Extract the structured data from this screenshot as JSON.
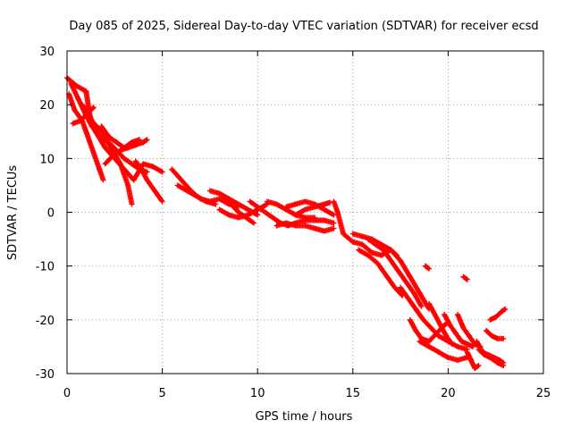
{
  "chart_data": {
    "type": "scatter",
    "title": "Day 085 of 2025, Sidereal Day-to-day VTEC variation (SDTVAR) for receiver ecsd",
    "xlabel": "GPS time / hours",
    "ylabel": "SDTVAR / TECUs",
    "xlim": [
      0,
      25
    ],
    "ylim": [
      -30,
      30
    ],
    "xticks": [
      0,
      5,
      10,
      15,
      20,
      25
    ],
    "yticks": [
      -30,
      -20,
      -10,
      0,
      10,
      20,
      30
    ],
    "grid": true,
    "marker": "+",
    "series_color": "#ff0000",
    "segments": [
      [
        [
          0.0,
          25.0
        ],
        [
          0.5,
          23.5
        ],
        [
          1.0,
          22.5
        ],
        [
          1.2,
          18.0
        ],
        [
          1.5,
          15.0
        ],
        [
          2.0,
          12.0
        ],
        [
          2.5,
          10.0
        ],
        [
          3.0,
          8.0
        ],
        [
          3.5,
          6.0
        ],
        [
          4.0,
          9.0
        ],
        [
          4.5,
          8.5
        ],
        [
          5.0,
          7.5
        ]
      ],
      [
        [
          0.1,
          22.0
        ],
        [
          0.4,
          19.0
        ],
        [
          0.8,
          17.0
        ],
        [
          1.1,
          14.0
        ],
        [
          1.4,
          11.0
        ],
        [
          1.7,
          8.0
        ],
        [
          1.9,
          6.0
        ]
      ],
      [
        [
          0.2,
          24.0
        ],
        [
          0.6,
          21.0
        ],
        [
          1.0,
          18.0
        ],
        [
          1.3,
          16.0
        ],
        [
          1.6,
          14.5
        ],
        [
          1.9,
          13.0
        ]
      ],
      [
        [
          0.8,
          20.0
        ],
        [
          1.3,
          17.0
        ],
        [
          1.8,
          15.0
        ],
        [
          2.3,
          12.0
        ],
        [
          2.8,
          9.0
        ],
        [
          3.2,
          5.0
        ],
        [
          3.4,
          1.5
        ]
      ],
      [
        [
          0.3,
          16.5
        ],
        [
          0.7,
          17.0
        ],
        [
          1.1,
          18.5
        ],
        [
          1.4,
          19.5
        ]
      ],
      [
        [
          1.8,
          16.0
        ],
        [
          2.2,
          14.0
        ],
        [
          2.6,
          13.0
        ],
        [
          3.0,
          12.0
        ],
        [
          3.4,
          13.0
        ],
        [
          3.8,
          13.5
        ]
      ],
      [
        [
          2.2,
          13.0
        ],
        [
          2.6,
          11.5
        ],
        [
          3.0,
          10.0
        ],
        [
          3.4,
          9.0
        ],
        [
          3.8,
          8.0
        ],
        [
          4.2,
          7.5
        ]
      ],
      [
        [
          2.0,
          9.0
        ],
        [
          2.4,
          10.5
        ],
        [
          2.8,
          11.5
        ],
        [
          3.2,
          12.0
        ],
        [
          3.6,
          12.5
        ],
        [
          4.0,
          13.0
        ],
        [
          4.2,
          13.5
        ]
      ],
      [
        [
          3.6,
          9.5
        ],
        [
          3.9,
          8.0
        ],
        [
          4.2,
          6.0
        ],
        [
          4.6,
          4.0
        ],
        [
          4.8,
          3.0
        ],
        [
          5.0,
          2.0
        ]
      ],
      [
        [
          5.5,
          8.0
        ],
        [
          6.0,
          6.0
        ],
        [
          6.5,
          4.0
        ],
        [
          7.0,
          2.5
        ],
        [
          7.5,
          2.0
        ],
        [
          8.0,
          2.5
        ],
        [
          8.5,
          1.5
        ],
        [
          9.0,
          1.0
        ]
      ],
      [
        [
          5.8,
          5.0
        ],
        [
          6.3,
          4.0
        ],
        [
          6.8,
          3.0
        ],
        [
          7.3,
          2.0
        ],
        [
          7.8,
          1.5
        ]
      ],
      [
        [
          7.5,
          4.0
        ],
        [
          8.0,
          3.5
        ],
        [
          8.5,
          2.5
        ],
        [
          9.0,
          1.5
        ],
        [
          9.5,
          0.5
        ],
        [
          10.0,
          -0.5
        ]
      ],
      [
        [
          8.0,
          0.5
        ],
        [
          8.5,
          -0.5
        ],
        [
          9.0,
          -1.0
        ],
        [
          9.5,
          -0.5
        ],
        [
          10.0,
          0.5
        ],
        [
          10.5,
          1.5
        ]
      ],
      [
        [
          8.2,
          3.0
        ],
        [
          8.6,
          1.5
        ],
        [
          9.0,
          0.0
        ],
        [
          9.4,
          -1.0
        ],
        [
          9.8,
          -2.0
        ]
      ],
      [
        [
          9.6,
          2.0
        ],
        [
          10.0,
          1.0
        ],
        [
          10.4,
          0.0
        ],
        [
          10.8,
          -1.0
        ],
        [
          11.2,
          -2.0
        ],
        [
          11.6,
          -2.5
        ],
        [
          12.0,
          -2.0
        ],
        [
          12.5,
          -1.5
        ],
        [
          13.0,
          -1.5
        ],
        [
          13.5,
          -1.5
        ],
        [
          14.0,
          -2.0
        ]
      ],
      [
        [
          10.5,
          2.0
        ],
        [
          11.0,
          1.5
        ],
        [
          11.5,
          0.5
        ],
        [
          12.0,
          -0.5
        ],
        [
          12.5,
          -1.0
        ],
        [
          13.0,
          -1.0
        ]
      ],
      [
        [
          11.0,
          -2.5
        ],
        [
          11.5,
          -2.0
        ],
        [
          12.0,
          -2.5
        ],
        [
          12.5,
          -2.5
        ],
        [
          13.0,
          -3.0
        ],
        [
          13.5,
          -3.5
        ],
        [
          14.0,
          -3.0
        ]
      ],
      [
        [
          11.5,
          1.0
        ],
        [
          12.0,
          1.5
        ],
        [
          12.5,
          2.0
        ],
        [
          13.0,
          1.5
        ],
        [
          13.5,
          0.5
        ],
        [
          14.0,
          -0.5
        ]
      ],
      [
        [
          12.0,
          -0.5
        ],
        [
          12.5,
          0.5
        ],
        [
          13.0,
          1.0
        ],
        [
          13.5,
          1.5
        ],
        [
          13.8,
          1.8
        ]
      ],
      [
        [
          14.0,
          2.0
        ],
        [
          14.2,
          0.0
        ],
        [
          14.5,
          -4.0
        ],
        [
          15.0,
          -5.5
        ],
        [
          15.5,
          -6.0
        ],
        [
          16.0,
          -7.5
        ],
        [
          16.5,
          -8.0
        ],
        [
          17.0,
          -7.0
        ],
        [
          17.3,
          -8.0
        ]
      ],
      [
        [
          15.0,
          -4.0
        ],
        [
          15.5,
          -4.5
        ],
        [
          16.0,
          -5.0
        ],
        [
          16.5,
          -6.0
        ],
        [
          17.0,
          -7.0
        ],
        [
          17.5,
          -9.0
        ],
        [
          18.0,
          -12.0
        ],
        [
          18.5,
          -15.0
        ],
        [
          19.0,
          -18.0
        ]
      ],
      [
        [
          15.3,
          -7.0
        ],
        [
          15.8,
          -8.0
        ],
        [
          16.3,
          -9.5
        ],
        [
          16.8,
          -12.0
        ],
        [
          17.2,
          -14.0
        ],
        [
          17.6,
          -15.5
        ]
      ],
      [
        [
          15.8,
          -5.0
        ],
        [
          16.2,
          -6.0
        ],
        [
          16.6,
          -7.0
        ],
        [
          17.0,
          -9.0
        ],
        [
          17.4,
          -11.0
        ],
        [
          17.8,
          -13.0
        ],
        [
          18.2,
          -15.0
        ],
        [
          18.6,
          -17.5
        ]
      ],
      [
        [
          17.5,
          -14.0
        ],
        [
          17.9,
          -16.0
        ],
        [
          18.3,
          -18.0
        ],
        [
          18.7,
          -20.0
        ],
        [
          19.1,
          -21.5
        ],
        [
          19.5,
          -23.0
        ],
        [
          20.0,
          -24.0
        ],
        [
          20.5,
          -25.0
        ],
        [
          21.0,
          -25.5
        ]
      ],
      [
        [
          18.0,
          -20.0
        ],
        [
          18.3,
          -22.0
        ],
        [
          18.6,
          -23.5
        ],
        [
          19.0,
          -24.0
        ],
        [
          19.4,
          -22.5
        ],
        [
          19.8,
          -21.0
        ],
        [
          20.0,
          -20.5
        ]
      ],
      [
        [
          18.5,
          -24.0
        ],
        [
          19.0,
          -25.0
        ],
        [
          19.5,
          -26.0
        ],
        [
          20.0,
          -27.0
        ],
        [
          20.5,
          -27.5
        ],
        [
          21.0,
          -27.0
        ]
      ],
      [
        [
          19.0,
          -17.0
        ],
        [
          19.3,
          -19.0
        ],
        [
          19.6,
          -21.0
        ],
        [
          19.9,
          -23.0
        ],
        [
          20.2,
          -24.5
        ]
      ],
      [
        [
          19.8,
          -19.0
        ],
        [
          20.1,
          -21.0
        ],
        [
          20.4,
          -22.5
        ],
        [
          20.7,
          -24.0
        ],
        [
          21.0,
          -24.5
        ],
        [
          21.3,
          -25.0
        ]
      ],
      [
        [
          20.5,
          -19.0
        ],
        [
          20.8,
          -21.5
        ],
        [
          21.1,
          -23.0
        ],
        [
          21.4,
          -24.5
        ],
        [
          21.7,
          -25.0
        ]
      ],
      [
        [
          21.0,
          -26.0
        ],
        [
          21.2,
          -27.5
        ],
        [
          21.4,
          -29.0
        ],
        [
          21.6,
          -28.5
        ]
      ],
      [
        [
          22.0,
          -22.0
        ],
        [
          22.3,
          -23.0
        ],
        [
          22.6,
          -23.5
        ],
        [
          22.9,
          -23.5
        ]
      ],
      [
        [
          21.5,
          -24.0
        ],
        [
          21.8,
          -26.0
        ],
        [
          22.1,
          -26.5
        ],
        [
          22.4,
          -27.0
        ],
        [
          22.7,
          -27.5
        ],
        [
          22.9,
          -28.0
        ]
      ],
      [
        [
          22.2,
          -20.0
        ],
        [
          22.5,
          -19.5
        ],
        [
          22.8,
          -18.5
        ],
        [
          23.0,
          -18.0
        ]
      ],
      [
        [
          18.8,
          -10.0
        ],
        [
          19.0,
          -10.5
        ]
      ],
      [
        [
          20.8,
          -12.0
        ],
        [
          21.0,
          -12.5
        ]
      ],
      [
        [
          21.6,
          -25.5
        ],
        [
          21.9,
          -26.5
        ],
        [
          22.2,
          -27.0
        ],
        [
          22.6,
          -28.0
        ],
        [
          22.9,
          -28.5
        ]
      ]
    ]
  }
}
